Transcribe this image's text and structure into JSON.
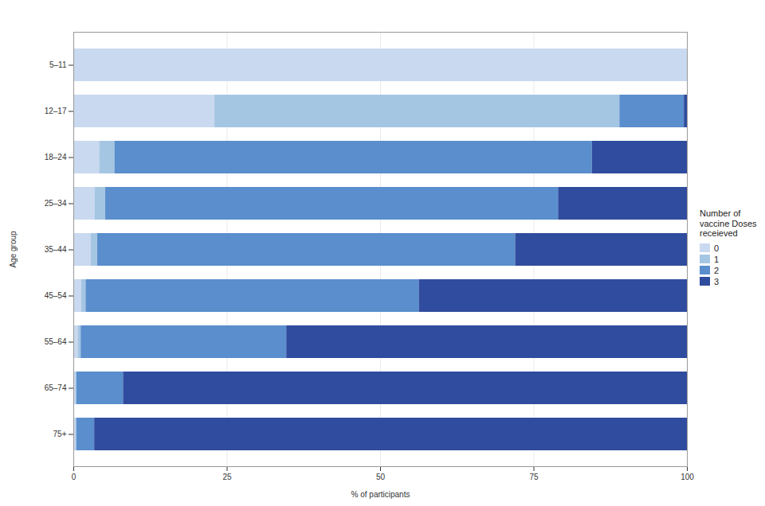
{
  "chart_data": {
    "type": "bar",
    "orientation": "horizontal",
    "stacked": true,
    "grid": true,
    "x_label": "% of participants",
    "y_label": "Age group",
    "legend_title": "Number of vaccine Doses receieved",
    "legend": "right",
    "categories": [
      "5–11",
      "12–17",
      "18–24",
      "25–34",
      "35–44",
      "45–54",
      "55–64",
      "65–74",
      "75+"
    ],
    "xlim": [
      0,
      100
    ],
    "xticks": [
      0,
      25,
      50,
      75,
      100
    ],
    "series": [
      {
        "name": "0",
        "color": "#c9d9ef",
        "values": [
          100,
          23,
          4.2,
          3.5,
          2.8,
          1.3,
          0.7,
          0.3,
          0.3
        ]
      },
      {
        "name": "1",
        "color": "#a5c6e3",
        "values": [
          0,
          66,
          2.5,
          1.7,
          1.1,
          0.7,
          0.5,
          0.2,
          0.2
        ]
      },
      {
        "name": "2",
        "color": "#5a8ecd",
        "values": [
          0,
          10.5,
          77.8,
          73.8,
          68.1,
          54.3,
          33.5,
          7.6,
          2.9
        ]
      },
      {
        "name": "3",
        "color": "#2f4c9e",
        "values": [
          0,
          0.5,
          15.5,
          21,
          28,
          43.7,
          65.3,
          91.9,
          96.6
        ]
      }
    ]
  }
}
